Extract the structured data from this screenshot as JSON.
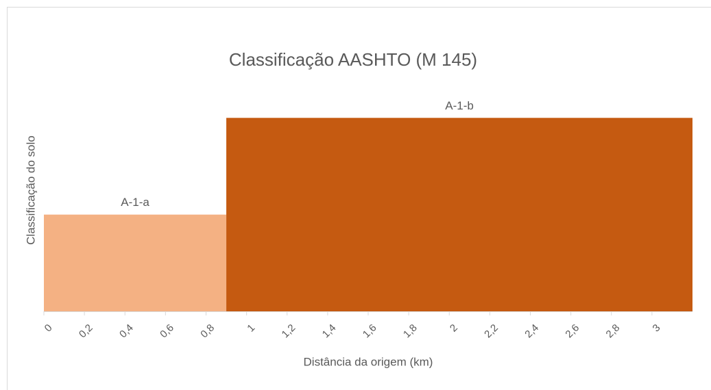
{
  "chart_data": {
    "type": "histogram",
    "title": "Classificação AASHTO (M 145)",
    "xlabel": "Distância da origem (km)",
    "ylabel": "Classificação do solo",
    "categories": [
      "A-1-a",
      "A-1-b"
    ],
    "bins": [
      0,
      0.9,
      3.2
    ],
    "values": [
      1,
      2
    ],
    "colors": [
      "#f4b183",
      "#c55a11"
    ],
    "xlim": [
      0,
      3.2
    ],
    "ylim": [
      0,
      2.2
    ],
    "xticks": [
      0,
      {
        "value": 0.2,
        "label": "0,2"
      },
      {
        "value": 0.4,
        "label": "0,4"
      },
      {
        "value": 0.6,
        "label": "0,6"
      },
      {
        "value": 0.8,
        "label": "0,8"
      },
      1,
      {
        "value": 1.2,
        "label": "1,2"
      },
      {
        "value": 1.4,
        "label": "1,4"
      },
      {
        "value": 1.6,
        "label": "1,6"
      },
      {
        "value": 1.8,
        "label": "1,8"
      },
      2,
      {
        "value": 2.2,
        "label": "2,2"
      },
      {
        "value": 2.4,
        "label": "2,4"
      },
      {
        "value": 2.6,
        "label": "2,6"
      },
      {
        "value": 2.8,
        "label": "2,8"
      },
      3
    ]
  }
}
